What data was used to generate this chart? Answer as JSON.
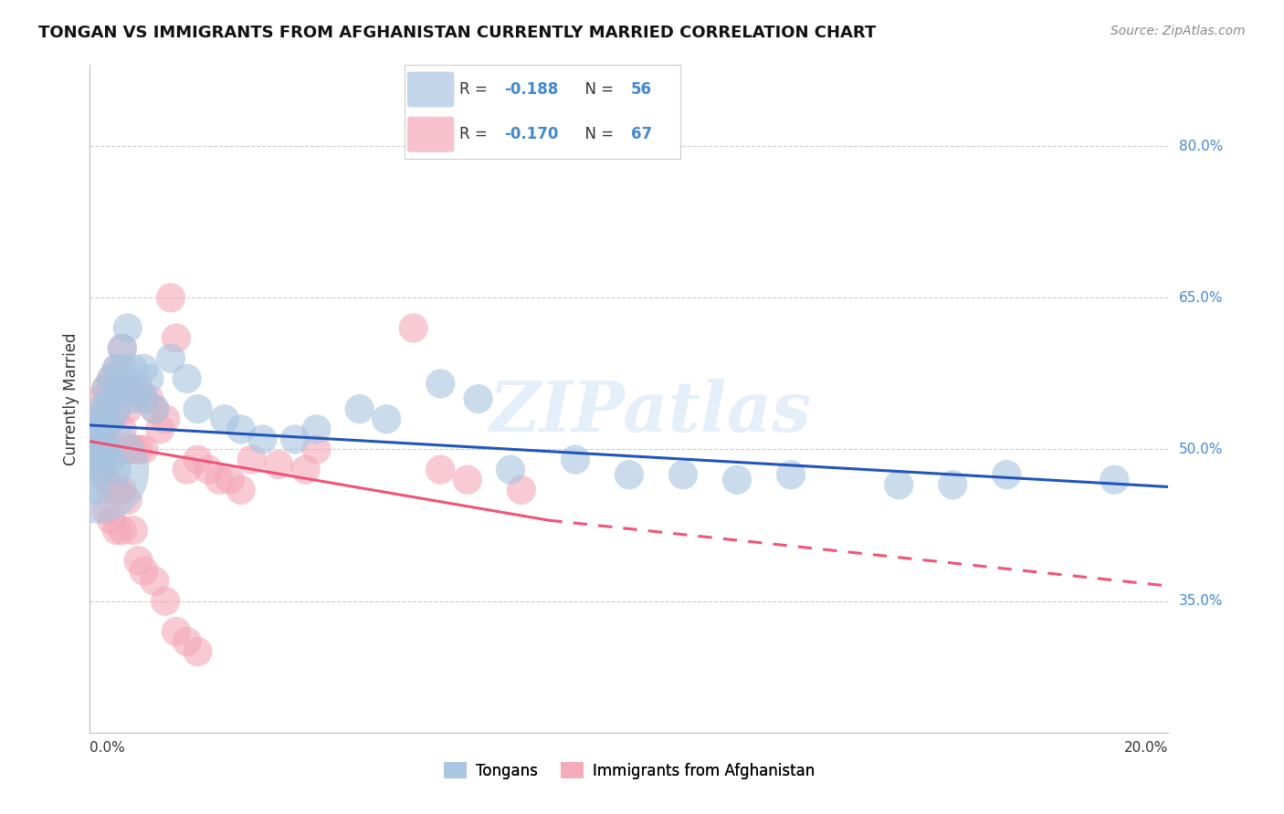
{
  "title": "TONGAN VS IMMIGRANTS FROM AFGHANISTAN CURRENTLY MARRIED CORRELATION CHART",
  "source": "Source: ZipAtlas.com",
  "ylabel": "Currently Married",
  "watermark": "ZIPatlas",
  "blue_R": "-0.188",
  "blue_N": "56",
  "pink_R": "-0.170",
  "pink_N": "67",
  "blue_color": "#A8C4E0",
  "pink_color": "#F4A8B8",
  "blue_line_color": "#2255BB",
  "pink_line_color": "#EE5577",
  "background_color": "#FFFFFF",
  "right_axis_color": "#4488CC",
  "xlim": [
    0.0,
    0.2
  ],
  "ylim": [
    0.22,
    0.88
  ],
  "blue_line_x0": 0.0,
  "blue_line_y0": 0.524,
  "blue_line_x1": 0.2,
  "blue_line_y1": 0.463,
  "pink_line_x0": 0.0,
  "pink_line_y0": 0.508,
  "pink_line_x1_solid": 0.085,
  "pink_line_y1_solid": 0.43,
  "pink_line_x1_dash": 0.2,
  "pink_line_y1_dash": 0.365,
  "blue_scatter_x": [
    0.001,
    0.001,
    0.001,
    0.002,
    0.002,
    0.002,
    0.002,
    0.003,
    0.003,
    0.003,
    0.003,
    0.004,
    0.004,
    0.004,
    0.005,
    0.005,
    0.005,
    0.006,
    0.006,
    0.007,
    0.007,
    0.008,
    0.008,
    0.009,
    0.01,
    0.01,
    0.011,
    0.012,
    0.015,
    0.018,
    0.02,
    0.025,
    0.028,
    0.032,
    0.038,
    0.042,
    0.05,
    0.055,
    0.065,
    0.072,
    0.078,
    0.09,
    0.1,
    0.11,
    0.12,
    0.13,
    0.15,
    0.16,
    0.17,
    0.19,
    0.001,
    0.001,
    0.002,
    0.003,
    0.004,
    0.005
  ],
  "blue_scatter_y": [
    0.53,
    0.51,
    0.49,
    0.54,
    0.52,
    0.5,
    0.48,
    0.56,
    0.54,
    0.52,
    0.5,
    0.57,
    0.55,
    0.53,
    0.58,
    0.56,
    0.54,
    0.6,
    0.58,
    0.62,
    0.56,
    0.58,
    0.55,
    0.56,
    0.58,
    0.55,
    0.57,
    0.54,
    0.59,
    0.57,
    0.54,
    0.53,
    0.52,
    0.51,
    0.51,
    0.52,
    0.54,
    0.53,
    0.565,
    0.55,
    0.48,
    0.49,
    0.475,
    0.475,
    0.47,
    0.475,
    0.465,
    0.465,
    0.475,
    0.47,
    0.48,
    0.46,
    0.49,
    0.5,
    0.49,
    0.48
  ],
  "blue_scatter_size_raw": [
    30,
    30,
    30,
    30,
    30,
    30,
    30,
    30,
    30,
    30,
    30,
    30,
    30,
    30,
    30,
    30,
    30,
    30,
    30,
    30,
    30,
    30,
    30,
    30,
    30,
    30,
    30,
    30,
    30,
    30,
    30,
    30,
    30,
    30,
    30,
    30,
    30,
    30,
    30,
    30,
    30,
    30,
    30,
    30,
    30,
    30,
    30,
    30,
    30,
    30,
    400,
    30,
    30,
    30,
    30,
    30
  ],
  "pink_scatter_x": [
    0.001,
    0.001,
    0.001,
    0.002,
    0.002,
    0.002,
    0.002,
    0.003,
    0.003,
    0.003,
    0.003,
    0.004,
    0.004,
    0.004,
    0.005,
    0.005,
    0.005,
    0.006,
    0.006,
    0.006,
    0.007,
    0.007,
    0.007,
    0.008,
    0.008,
    0.009,
    0.009,
    0.01,
    0.01,
    0.011,
    0.012,
    0.013,
    0.014,
    0.015,
    0.016,
    0.018,
    0.02,
    0.022,
    0.024,
    0.026,
    0.028,
    0.03,
    0.035,
    0.04,
    0.042,
    0.06,
    0.065,
    0.07,
    0.08,
    0.002,
    0.003,
    0.003,
    0.004,
    0.004,
    0.005,
    0.005,
    0.006,
    0.006,
    0.007,
    0.008,
    0.009,
    0.01,
    0.012,
    0.014,
    0.016,
    0.018,
    0.02
  ],
  "pink_scatter_y": [
    0.52,
    0.51,
    0.49,
    0.55,
    0.53,
    0.51,
    0.49,
    0.56,
    0.54,
    0.52,
    0.5,
    0.57,
    0.55,
    0.53,
    0.58,
    0.56,
    0.54,
    0.6,
    0.56,
    0.52,
    0.56,
    0.54,
    0.5,
    0.56,
    0.5,
    0.56,
    0.5,
    0.55,
    0.5,
    0.55,
    0.54,
    0.52,
    0.53,
    0.65,
    0.61,
    0.48,
    0.49,
    0.48,
    0.47,
    0.47,
    0.46,
    0.49,
    0.485,
    0.48,
    0.5,
    0.62,
    0.48,
    0.47,
    0.46,
    0.48,
    0.47,
    0.44,
    0.46,
    0.43,
    0.46,
    0.42,
    0.46,
    0.42,
    0.45,
    0.42,
    0.39,
    0.38,
    0.37,
    0.35,
    0.32,
    0.31,
    0.3
  ],
  "pink_scatter_size_raw": [
    30,
    30,
    30,
    30,
    30,
    30,
    30,
    30,
    30,
    30,
    30,
    30,
    30,
    30,
    30,
    30,
    30,
    30,
    30,
    30,
    30,
    30,
    30,
    30,
    30,
    30,
    30,
    30,
    30,
    30,
    30,
    30,
    30,
    30,
    30,
    30,
    30,
    30,
    30,
    30,
    30,
    30,
    30,
    30,
    30,
    30,
    30,
    30,
    30,
    30,
    30,
    30,
    30,
    30,
    30,
    30,
    30,
    30,
    30,
    30,
    30,
    30,
    30,
    30,
    30,
    30,
    30
  ]
}
